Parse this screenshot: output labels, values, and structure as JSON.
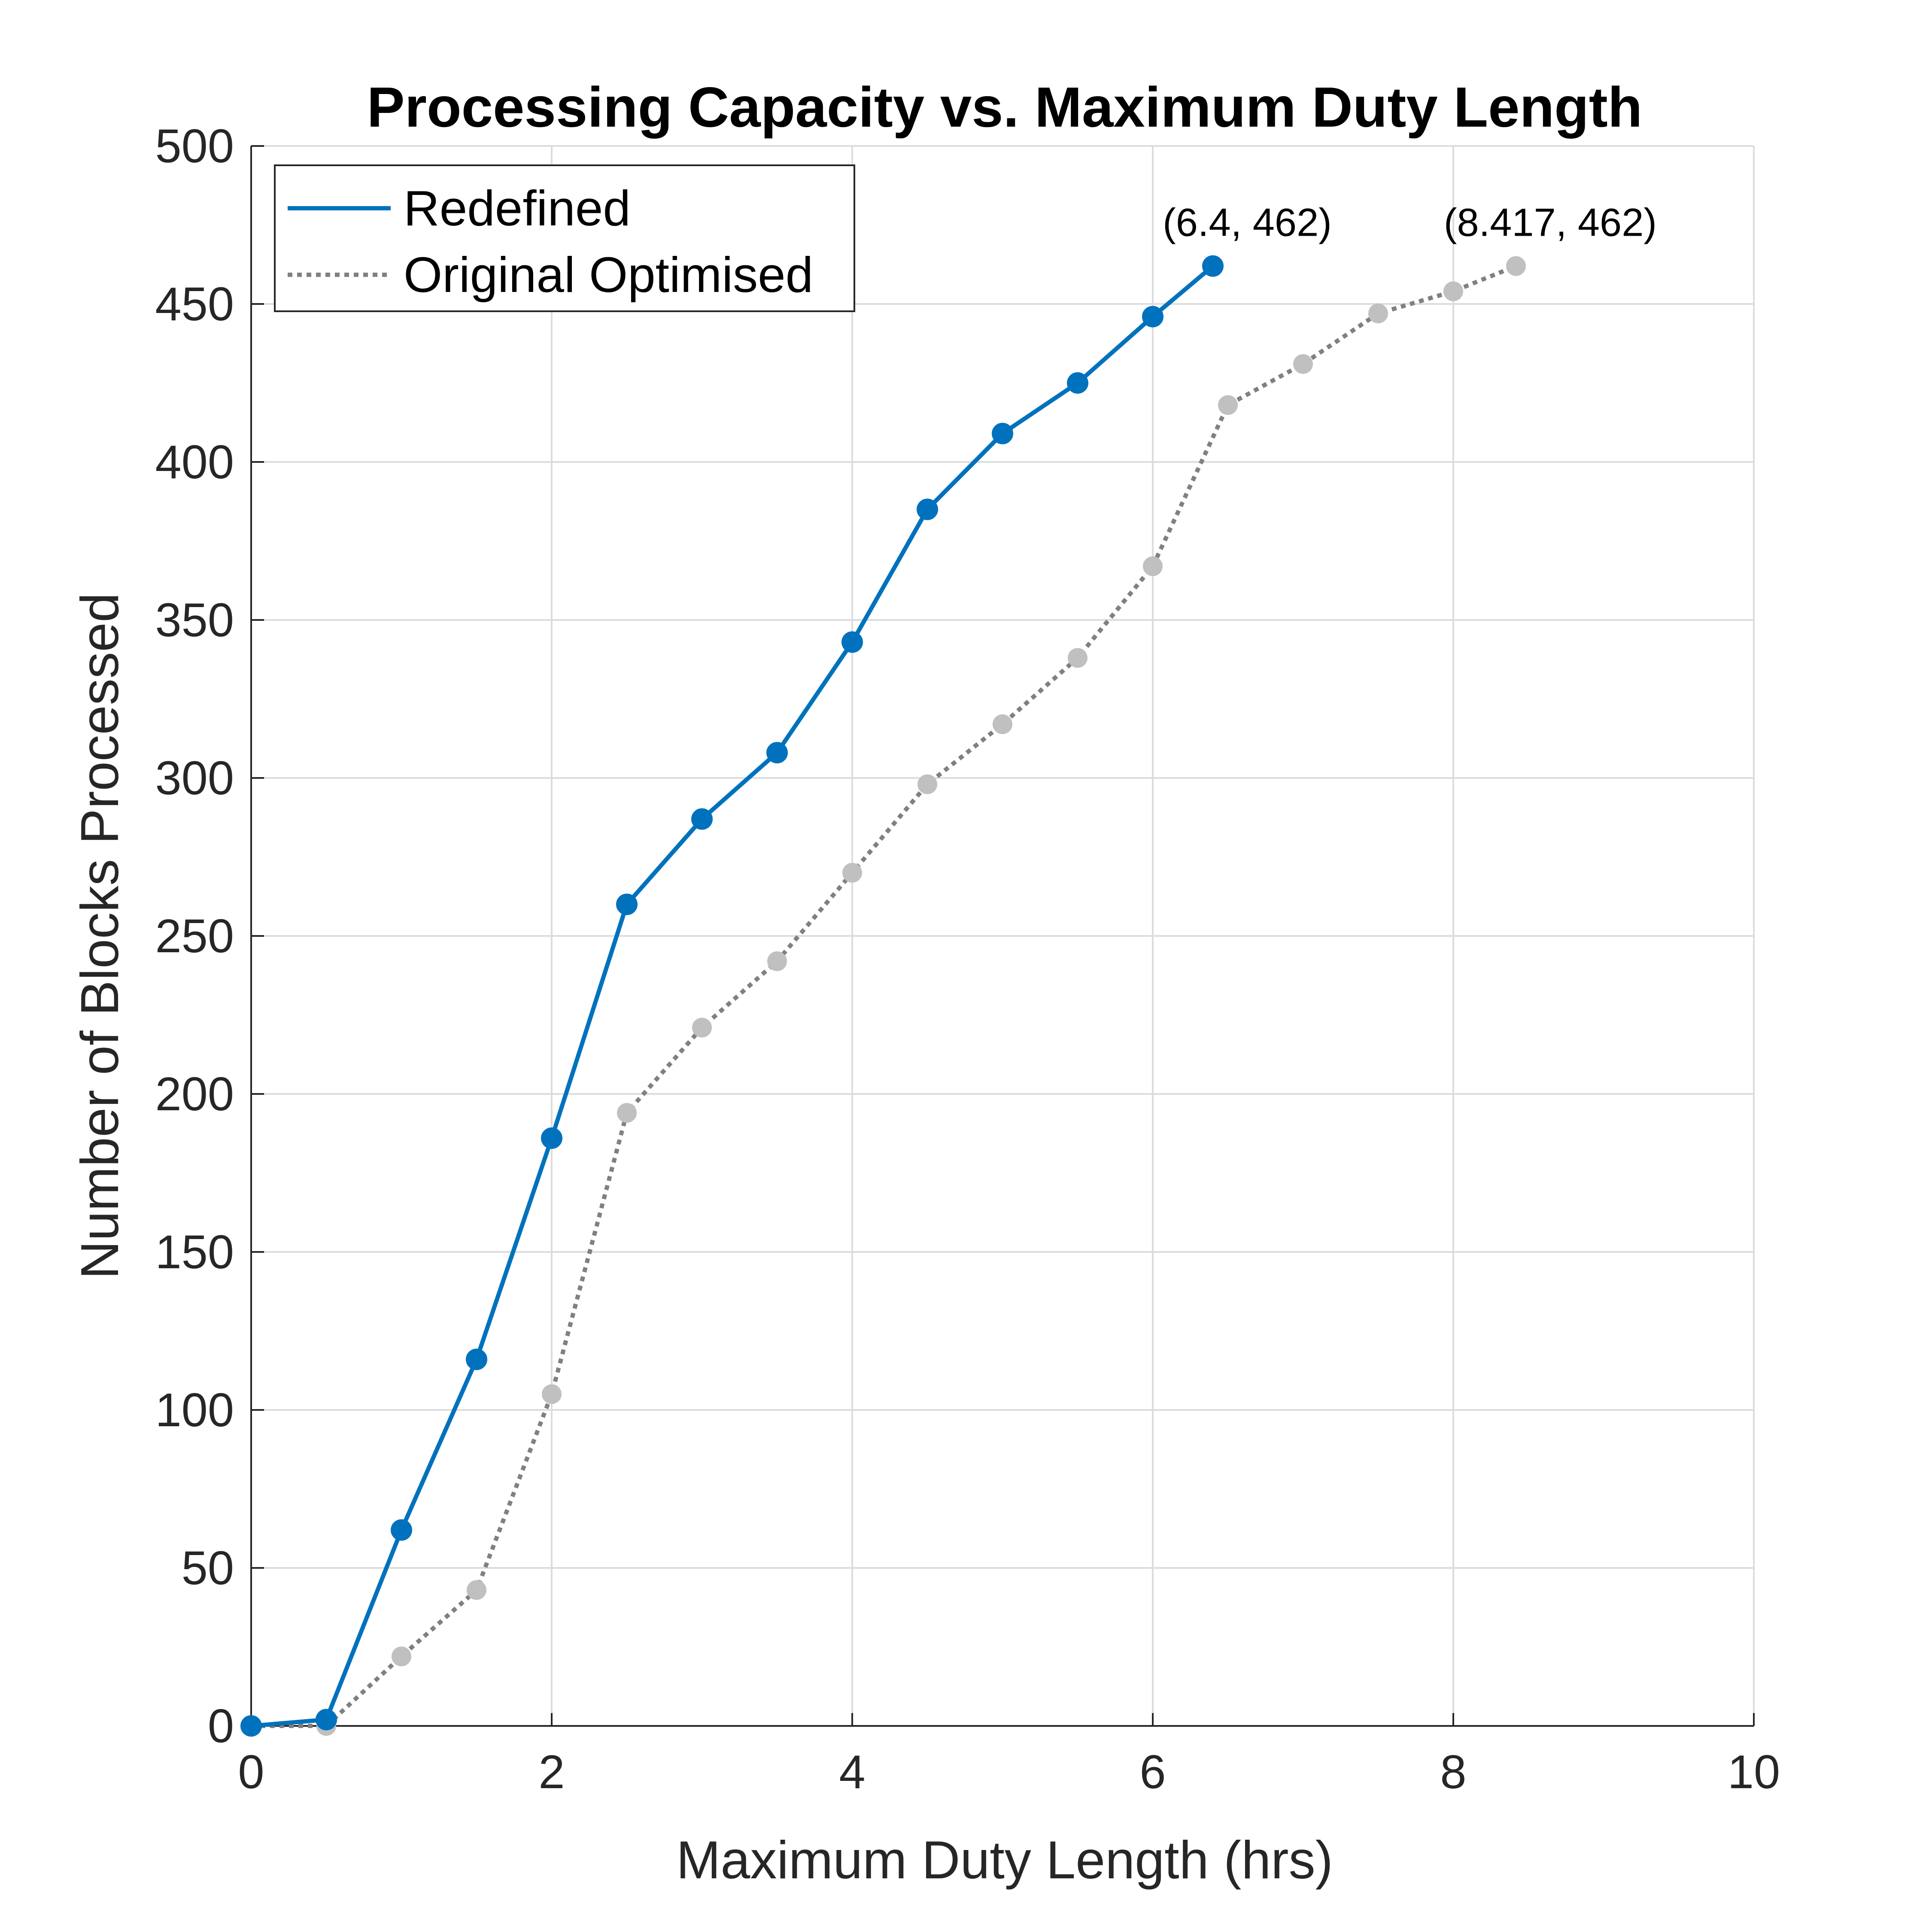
{
  "chart_data": {
    "type": "line",
    "title": "Processing Capacity vs. Maximum Duty Length",
    "xlabel": "Maximum Duty Length (hrs)",
    "ylabel": "Number of Blocks Processed",
    "xlim": [
      0,
      10
    ],
    "ylim": [
      0,
      500
    ],
    "xticks": [
      "0",
      "2",
      "4",
      "6",
      "8",
      "10"
    ],
    "yticks": [
      "0",
      "50",
      "100",
      "150",
      "200",
      "250",
      "300",
      "350",
      "400",
      "450",
      "500"
    ],
    "grid": true,
    "legend_position": "top-left",
    "series": [
      {
        "name": "Redefined",
        "style": "solid",
        "color": "#0072bd",
        "x": [
          0,
          0.5,
          1,
          1.5,
          2,
          2.5,
          3,
          3.5,
          4,
          4.5,
          5,
          5.5,
          6,
          6.4
        ],
        "y": [
          0,
          2,
          62,
          116,
          186,
          260,
          287,
          308,
          343,
          385,
          409,
          425,
          446,
          462
        ]
      },
      {
        "name": "Original Optimised",
        "style": "dotted",
        "color": "#808080",
        "marker_color": "#c0c0c0",
        "x": [
          0,
          0.5,
          1,
          1.5,
          2,
          2.5,
          3,
          3.5,
          4,
          4.5,
          5,
          5.5,
          6,
          6.5,
          7,
          7.5,
          8,
          8.417
        ],
        "y": [
          0,
          0,
          22,
          43,
          105,
          194,
          221,
          242,
          270,
          298,
          317,
          338,
          367,
          418,
          431,
          447,
          454,
          462
        ]
      }
    ],
    "annotations": [
      {
        "text": "(6.4, 462)",
        "x": 6.4,
        "y": 462
      },
      {
        "text": "(8.417, 462)",
        "x": 8.417,
        "y": 462
      }
    ]
  }
}
